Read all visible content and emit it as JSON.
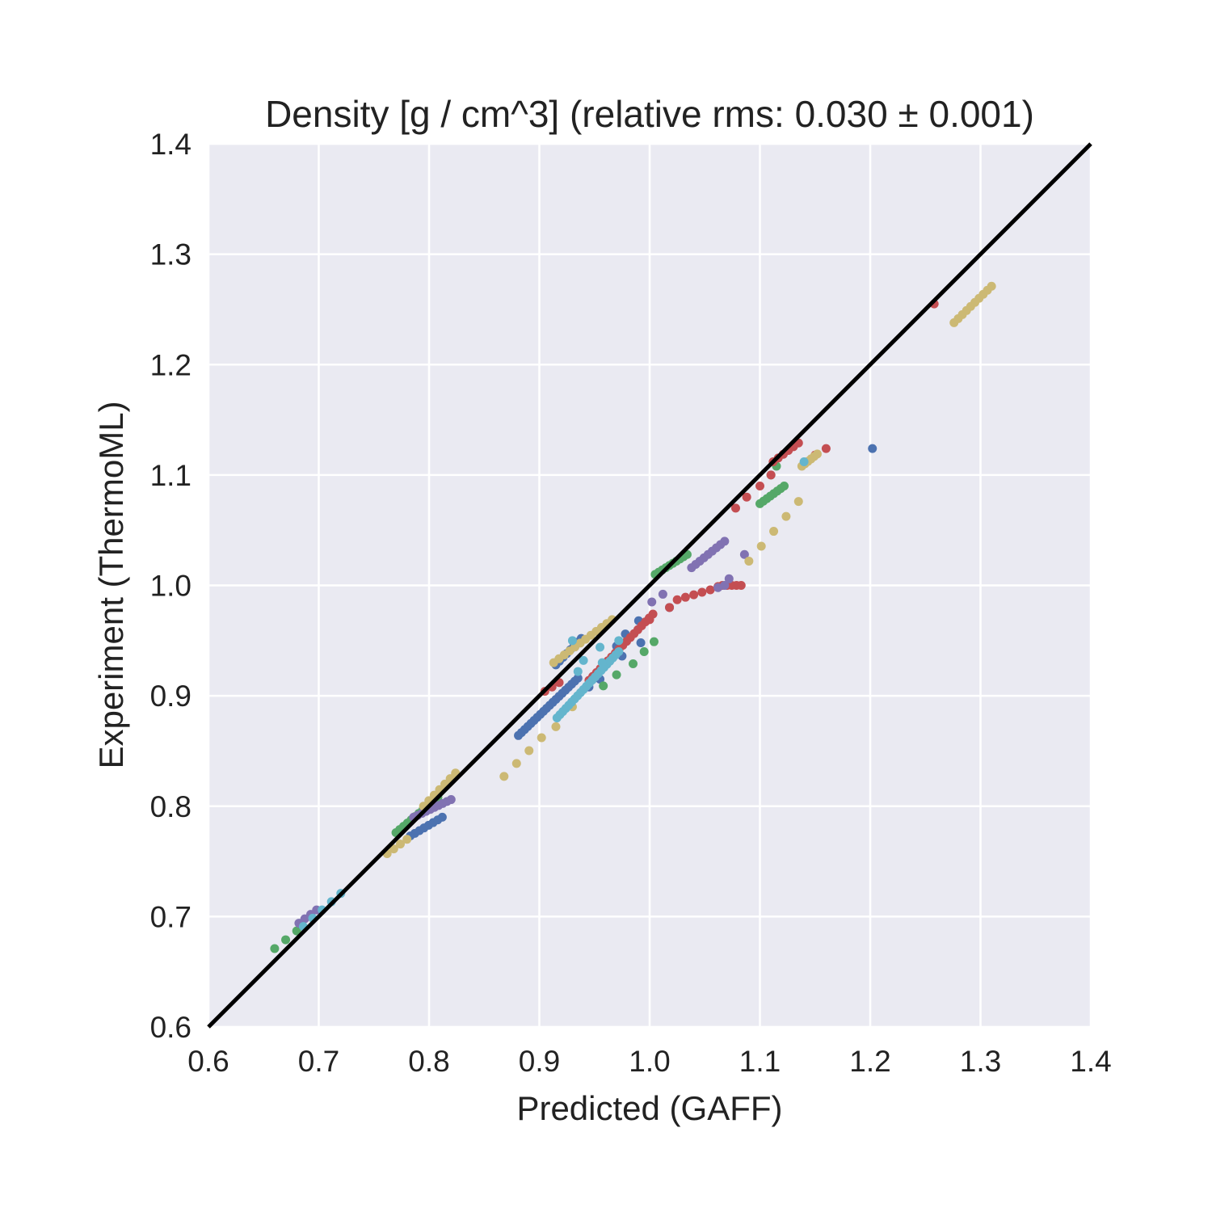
{
  "chart_data": {
    "type": "scatter",
    "title": "Density [g / cm^3] (relative rms: 0.030 ± 0.001)",
    "xlabel": "Predicted (GAFF)",
    "ylabel": "Experiment (ThermoML)",
    "xlim": [
      0.6,
      1.4
    ],
    "ylim": [
      0.6,
      1.4
    ],
    "xticks": [
      "0.6",
      "0.7",
      "0.8",
      "0.9",
      "1.0",
      "1.1",
      "1.2",
      "1.3",
      "1.4"
    ],
    "yticks": [
      "0.6",
      "0.7",
      "0.8",
      "0.9",
      "1.0",
      "1.1",
      "1.2",
      "1.3",
      "1.4"
    ],
    "grid": true,
    "legend": "none",
    "reference_line": {
      "from": [
        0.6,
        0.6
      ],
      "to": [
        1.4,
        1.4
      ],
      "color": "#000000"
    },
    "colors": {
      "background": "#eaeaf2",
      "grid": "#ffffff",
      "text": "#222222"
    },
    "series": [
      {
        "color": "#4c72b0",
        "segments": [
          {
            "x0": 0.881,
            "y0": 0.864,
            "x1": 0.935,
            "y1": 0.916,
            "n": 20
          },
          {
            "x0": 0.915,
            "y0": 0.928,
            "x1": 0.938,
            "y1": 0.952,
            "n": 8
          },
          {
            "x0": 0.783,
            "y0": 0.773,
            "x1": 0.812,
            "y1": 0.79,
            "n": 8
          }
        ],
        "points": [
          [
            1.202,
            1.124
          ],
          [
            0.978,
            0.956
          ],
          [
            0.99,
            0.968
          ],
          [
            0.975,
            0.936
          ],
          [
            0.992,
            0.948
          ],
          [
            1.018,
            0.98
          ],
          [
            0.97,
            0.945
          ],
          [
            0.955,
            0.915
          ],
          [
            0.945,
            0.908
          ]
        ]
      },
      {
        "color": "#55a868",
        "segments": [
          {
            "x0": 0.66,
            "y0": 0.671,
            "x1": 0.68,
            "y1": 0.687,
            "n": 3
          },
          {
            "x0": 0.77,
            "y0": 0.776,
            "x1": 0.808,
            "y1": 0.808,
            "n": 12
          },
          {
            "x0": 1.005,
            "y0": 1.01,
            "x1": 1.034,
            "y1": 1.028,
            "n": 10
          },
          {
            "x0": 1.1,
            "y0": 1.074,
            "x1": 1.122,
            "y1": 1.09,
            "n": 8
          }
        ],
        "points": [
          [
            0.958,
            0.909
          ],
          [
            0.97,
            0.919
          ],
          [
            0.985,
            0.929
          ],
          [
            0.995,
            0.94
          ],
          [
            1.004,
            0.949
          ],
          [
            1.11,
            1.1
          ],
          [
            1.115,
            1.108
          ]
        ]
      },
      {
        "color": "#c44e52",
        "segments": [
          {
            "x0": 0.905,
            "y0": 0.904,
            "x1": 0.918,
            "y1": 0.912,
            "n": 3
          },
          {
            "x0": 0.945,
            "y0": 0.914,
            "x1": 1.003,
            "y1": 0.974,
            "n": 18
          },
          {
            "x0": 1.025,
            "y0": 0.987,
            "x1": 1.055,
            "y1": 0.996,
            "n": 5
          },
          {
            "x0": 1.066,
            "y0": 1.0,
            "x1": 1.083,
            "y1": 1.0,
            "n": 5
          },
          {
            "x0": 1.112,
            "y0": 1.112,
            "x1": 1.135,
            "y1": 1.129,
            "n": 6
          }
        ],
        "points": [
          [
            1.018,
            0.98
          ],
          [
            1.062,
            0.999
          ],
          [
            1.078,
            1.07
          ],
          [
            1.088,
            1.08
          ],
          [
            1.1,
            1.09
          ],
          [
            1.11,
            1.1
          ],
          [
            1.16,
            1.124
          ],
          [
            1.15,
            1.118
          ],
          [
            1.258,
            1.255
          ],
          [
            1.0,
            0.969
          ]
        ]
      },
      {
        "color": "#8172b2",
        "segments": [
          {
            "x0": 0.682,
            "y0": 0.694,
            "x1": 0.698,
            "y1": 0.706,
            "n": 4
          },
          {
            "x0": 0.786,
            "y0": 0.79,
            "x1": 0.82,
            "y1": 0.806,
            "n": 10
          },
          {
            "x0": 1.038,
            "y0": 1.016,
            "x1": 1.068,
            "y1": 1.04,
            "n": 9
          }
        ],
        "points": [
          [
            1.002,
            0.985
          ],
          [
            1.012,
            0.992
          ],
          [
            1.068,
            1.0
          ],
          [
            1.072,
            1.006
          ],
          [
            1.086,
            1.028
          ],
          [
            1.062,
            0.998
          ]
        ]
      },
      {
        "color": "#ccb974",
        "segments": [
          {
            "x0": 0.762,
            "y0": 0.757,
            "x1": 0.78,
            "y1": 0.77,
            "n": 4
          },
          {
            "x0": 0.795,
            "y0": 0.8,
            "x1": 0.824,
            "y1": 0.83,
            "n": 7
          },
          {
            "x0": 0.868,
            "y0": 0.827,
            "x1": 0.902,
            "y1": 0.862,
            "n": 4
          },
          {
            "x0": 0.913,
            "y0": 0.93,
            "x1": 0.966,
            "y1": 0.969,
            "n": 12
          },
          {
            "x0": 1.09,
            "y0": 1.022,
            "x1": 1.135,
            "y1": 1.076,
            "n": 5
          },
          {
            "x0": 1.138,
            "y0": 1.108,
            "x1": 1.152,
            "y1": 1.119,
            "n": 6
          },
          {
            "x0": 1.276,
            "y0": 1.238,
            "x1": 1.31,
            "y1": 1.271,
            "n": 10
          }
        ],
        "points": [
          [
            0.915,
            0.872
          ],
          [
            0.93,
            0.89
          ]
        ]
      },
      {
        "color": "#64b5cd",
        "segments": [
          {
            "x0": 0.686,
            "y0": 0.691,
            "x1": 0.72,
            "y1": 0.721,
            "n": 5
          },
          {
            "x0": 0.916,
            "y0": 0.88,
            "x1": 0.972,
            "y1": 0.94,
            "n": 22
          }
        ],
        "points": [
          [
            0.93,
            0.95
          ],
          [
            0.94,
            0.932
          ],
          [
            0.935,
            0.922
          ],
          [
            0.972,
            0.95
          ],
          [
            0.955,
            0.944
          ],
          [
            1.14,
            1.112
          ],
          [
            0.957,
            0.93
          ]
        ]
      }
    ]
  }
}
